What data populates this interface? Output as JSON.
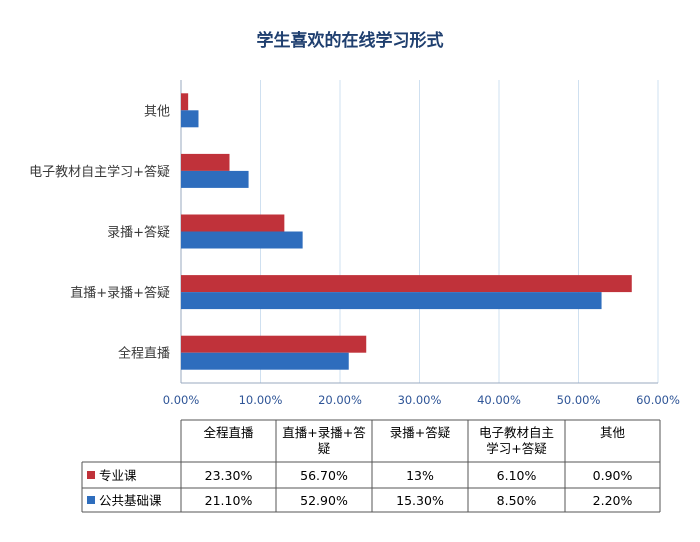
{
  "chart_data": {
    "type": "bar",
    "orientation": "horizontal",
    "title": "学生喜欢的在线学习形式",
    "categories": [
      "全程直播",
      "直播+录播+答疑",
      "录播+答疑",
      "电子教材自主学习+答疑",
      "其他"
    ],
    "series": [
      {
        "name": "专业课",
        "values": [
          23.3,
          56.7,
          13.0,
          6.1,
          0.9
        ],
        "color": "#c0323a"
      },
      {
        "name": "公共基础课",
        "values": [
          21.1,
          52.9,
          15.3,
          8.5,
          2.2
        ],
        "color": "#2e6dbd"
      }
    ],
    "xlim": [
      0,
      60
    ],
    "xticks": [
      0,
      10,
      20,
      30,
      40,
      50,
      60
    ],
    "xtick_labels": [
      "0.00%",
      "10.00%",
      "20.00%",
      "30.00%",
      "40.00%",
      "50.00%",
      "60.00%"
    ],
    "grid": true,
    "legend": "data-table-below"
  },
  "table": {
    "headers": [
      [
        "全程直播"
      ],
      [
        "直播+录播+答",
        "疑"
      ],
      [
        "录播+答疑"
      ],
      [
        "电子教材自主",
        "学习+答疑"
      ],
      [
        "其他"
      ]
    ],
    "rows": [
      {
        "series": "专业课",
        "color": "#c0323a",
        "cells": [
          "23.30%",
          "56.70%",
          "13%",
          "6.10%",
          "0.90%"
        ]
      },
      {
        "series": "公共基础课",
        "color": "#2e6dbd",
        "cells": [
          "21.10%",
          "52.90%",
          "15.30%",
          "8.50%",
          "2.20%"
        ]
      }
    ]
  }
}
